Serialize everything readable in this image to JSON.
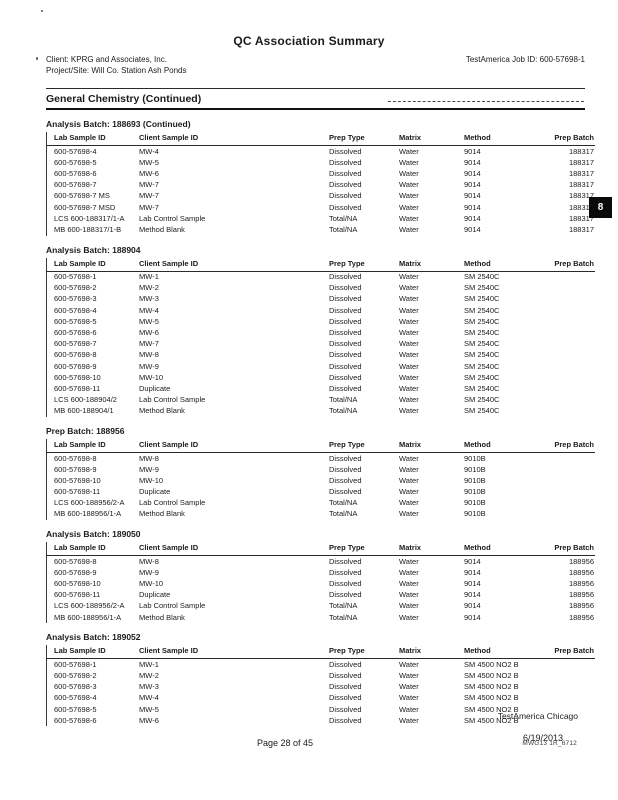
{
  "header": {
    "title": "QC Association Summary",
    "client": "Client: KPRG and Associates, Inc.",
    "project": "Project/Site: Will Co. Station Ash Ponds",
    "job_id": "TestAmerica Job ID: 600-57698-1"
  },
  "section": {
    "title": "General Chemistry (Continued)"
  },
  "side_tab": "8",
  "columns": [
    "Lab Sample ID",
    "Client Sample ID",
    "Prep Type",
    "Matrix",
    "Method",
    "Prep Batch"
  ],
  "batches": [
    {
      "title": "Analysis Batch: 188693 (Continued)",
      "rows": [
        [
          "600-57698-4",
          "MW-4",
          "Dissolved",
          "Water",
          "9014",
          "188317"
        ],
        [
          "600-57698-5",
          "MW-5",
          "Dissolved",
          "Water",
          "9014",
          "188317"
        ],
        [
          "600-57698-6",
          "MW-6",
          "Dissolved",
          "Water",
          "9014",
          "188317"
        ],
        [
          "600-57698-7",
          "MW-7",
          "Dissolved",
          "Water",
          "9014",
          "188317"
        ],
        [
          "600-57698-7 MS",
          "MW-7",
          "Dissolved",
          "Water",
          "9014",
          "188317"
        ],
        [
          "600-57698-7 MSD",
          "MW-7",
          "Dissolved",
          "Water",
          "9014",
          "188317"
        ],
        [
          "LCS 600-188317/1-A",
          "Lab Control Sample",
          "Total/NA",
          "Water",
          "9014",
          "188317"
        ],
        [
          "MB 600-188317/1-B",
          "Method Blank",
          "Total/NA",
          "Water",
          "9014",
          "188317"
        ]
      ]
    },
    {
      "title": "Analysis Batch: 188904",
      "rows": [
        [
          "600-57698-1",
          "MW-1",
          "Dissolved",
          "Water",
          "SM 2540C",
          ""
        ],
        [
          "600-57698-2",
          "MW-2",
          "Dissolved",
          "Water",
          "SM 2540C",
          ""
        ],
        [
          "600-57698-3",
          "MW-3",
          "Dissolved",
          "Water",
          "SM 2540C",
          ""
        ],
        [
          "600-57698-4",
          "MW-4",
          "Dissolved",
          "Water",
          "SM 2540C",
          ""
        ],
        [
          "600-57698-5",
          "MW-5",
          "Dissolved",
          "Water",
          "SM 2540C",
          ""
        ],
        [
          "600-57698-6",
          "MW-6",
          "Dissolved",
          "Water",
          "SM 2540C",
          ""
        ],
        [
          "600-57698-7",
          "MW-7",
          "Dissolved",
          "Water",
          "SM 2540C",
          ""
        ],
        [
          "600-57698-8",
          "MW-8",
          "Dissolved",
          "Water",
          "SM 2540C",
          ""
        ],
        [
          "600-57698-9",
          "MW-9",
          "Dissolved",
          "Water",
          "SM 2540C",
          ""
        ],
        [
          "600-57698-10",
          "MW-10",
          "Dissolved",
          "Water",
          "SM 2540C",
          ""
        ],
        [
          "600-57698-11",
          "Duplicate",
          "Dissolved",
          "Water",
          "SM 2540C",
          ""
        ],
        [
          "LCS 600-188904/2",
          "Lab Control Sample",
          "Total/NA",
          "Water",
          "SM 2540C",
          ""
        ],
        [
          "MB 600-188904/1",
          "Method Blank",
          "Total/NA",
          "Water",
          "SM 2540C",
          ""
        ]
      ]
    },
    {
      "title": "Prep Batch: 188956",
      "rows": [
        [
          "600-57698-8",
          "MW-8",
          "Dissolved",
          "Water",
          "9010B",
          ""
        ],
        [
          "600-57698-9",
          "MW-9",
          "Dissolved",
          "Water",
          "9010B",
          ""
        ],
        [
          "600-57698-10",
          "MW-10",
          "Dissolved",
          "Water",
          "9010B",
          ""
        ],
        [
          "600-57698-11",
          "Duplicate",
          "Dissolved",
          "Water",
          "9010B",
          ""
        ],
        [
          "LCS 600-188956/2-A",
          "Lab Control Sample",
          "Total/NA",
          "Water",
          "9010B",
          ""
        ],
        [
          "MB 600-188956/1-A",
          "Method Blank",
          "Total/NA",
          "Water",
          "9010B",
          ""
        ]
      ]
    },
    {
      "title": "Analysis Batch: 189050",
      "rows": [
        [
          "600-57698-8",
          "MW-8",
          "Dissolved",
          "Water",
          "9014",
          "188956"
        ],
        [
          "600-57698-9",
          "MW-9",
          "Dissolved",
          "Water",
          "9014",
          "188956"
        ],
        [
          "600-57698-10",
          "MW-10",
          "Dissolved",
          "Water",
          "9014",
          "188956"
        ],
        [
          "600-57698-11",
          "Duplicate",
          "Dissolved",
          "Water",
          "9014",
          "188956"
        ],
        [
          "LCS 600-188956/2-A",
          "Lab Control Sample",
          "Total/NA",
          "Water",
          "9014",
          "188956"
        ],
        [
          "MB 600-188956/1-A",
          "Method Blank",
          "Total/NA",
          "Water",
          "9014",
          "188956"
        ]
      ]
    },
    {
      "title": "Analysis Batch: 189052",
      "rows": [
        [
          "600-57698-1",
          "MW-1",
          "Dissolved",
          "Water",
          "SM 4500 NO2 B",
          ""
        ],
        [
          "600-57698-2",
          "MW-2",
          "Dissolved",
          "Water",
          "SM 4500 NO2 B",
          ""
        ],
        [
          "600-57698-3",
          "MW-3",
          "Dissolved",
          "Water",
          "SM 4500 NO2 B",
          ""
        ],
        [
          "600-57698-4",
          "MW-4",
          "Dissolved",
          "Water",
          "SM 4500 NO2 B",
          ""
        ],
        [
          "600-57698-5",
          "MW-5",
          "Dissolved",
          "Water",
          "SM 4500 NO2 B",
          ""
        ],
        [
          "600-57698-6",
          "MW-6",
          "Dissolved",
          "Water",
          "SM 4500 NO2 B",
          ""
        ]
      ]
    }
  ],
  "footer": {
    "lab": "TestAmerica Chicago",
    "page": "Page 28 of 45",
    "date": "6/19/2013",
    "stamp": "MWG13 1R_6712"
  }
}
